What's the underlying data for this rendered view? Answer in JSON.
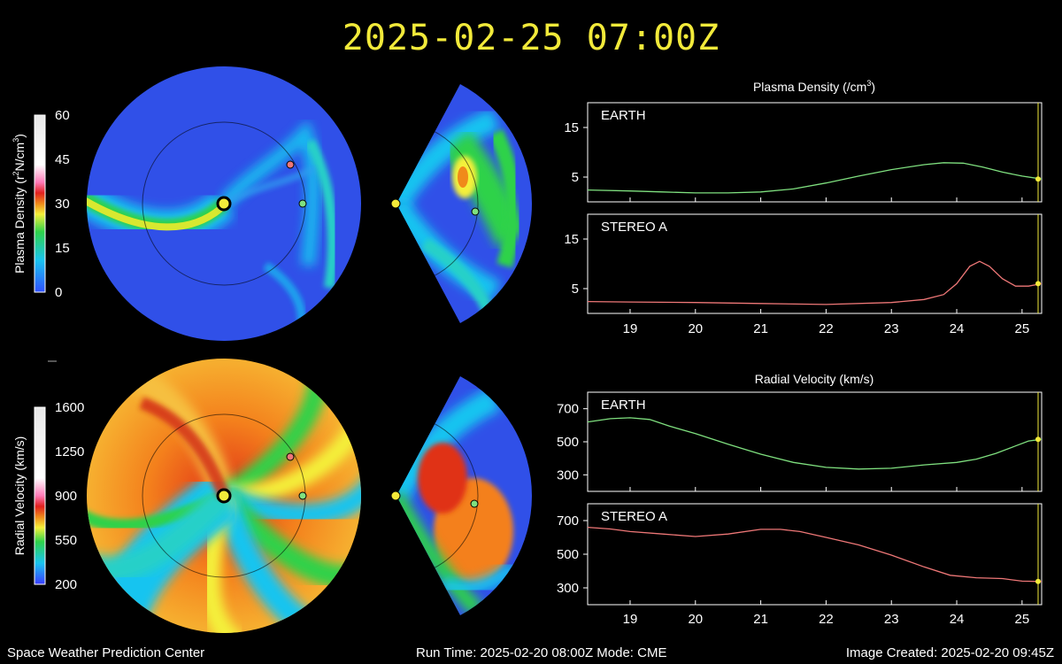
{
  "title": "2025-02-25  07:00Z",
  "footer": {
    "left": "Space Weather Prediction Center",
    "center": "Run Time: 2025-02-20 08:00Z  Mode: CME",
    "right": "Image Created: 2025-02-20 09:45Z"
  },
  "colors": {
    "title": "#f2ea3a",
    "earth": "#7fe07f",
    "stereo_a": "#ee7777",
    "now_marker": "#f2ea3a",
    "axis": "#ffffff"
  },
  "colorbars": {
    "density": {
      "label_prefix": "Plasma Density (r",
      "label_suffix": "N/cm",
      "ticks": [
        "60",
        "45",
        "30",
        "15",
        "0"
      ]
    },
    "velocity": {
      "label": "Radial Velocity (km/s)",
      "ticks": [
        "1600",
        "1250",
        "900",
        "550",
        "200"
      ]
    }
  },
  "chart_data": [
    {
      "type": "line",
      "title": "Plasma Density (/cm3)",
      "title_main": "Plasma Density (/cm",
      "title_sup": "3",
      "title_end": ")",
      "ylim": [
        0,
        20
      ],
      "yticks": [
        "15",
        "5"
      ],
      "xlim": [
        18.35,
        25.3
      ],
      "xticks": [
        "19",
        "20",
        "21",
        "22",
        "23",
        "24",
        "25"
      ],
      "panels": [
        {
          "label": "EARTH",
          "color": "#7fe07f",
          "x": [
            18.35,
            19.0,
            19.5,
            20.0,
            20.5,
            21.0,
            21.5,
            22.0,
            22.5,
            23.0,
            23.5,
            23.8,
            24.1,
            24.4,
            24.7,
            25.0,
            25.3
          ],
          "y": [
            2.4,
            2.2,
            2.0,
            1.8,
            1.8,
            2.0,
            2.6,
            3.8,
            5.2,
            6.5,
            7.5,
            7.9,
            7.8,
            7.0,
            6.0,
            5.2,
            4.6
          ]
        },
        {
          "label": "STEREO A",
          "color": "#ee7777",
          "x": [
            18.35,
            19.0,
            20.0,
            21.0,
            22.0,
            23.0,
            23.5,
            23.8,
            24.0,
            24.2,
            24.35,
            24.5,
            24.7,
            24.9,
            25.1,
            25.3
          ],
          "y": [
            2.4,
            2.3,
            2.2,
            2.0,
            1.8,
            2.2,
            2.8,
            3.8,
            6.0,
            9.5,
            10.5,
            9.5,
            7.0,
            5.5,
            5.5,
            6.0
          ]
        }
      ]
    },
    {
      "type": "line",
      "title": "Radial Velocity (km/s)",
      "ylim": [
        200,
        800
      ],
      "yticks": [
        "700",
        "500",
        "300"
      ],
      "xlim": [
        18.35,
        25.3
      ],
      "xticks": [
        "19",
        "20",
        "21",
        "22",
        "23",
        "24",
        "25"
      ],
      "panels": [
        {
          "label": "EARTH",
          "color": "#7fe07f",
          "x": [
            18.35,
            18.7,
            19.0,
            19.3,
            19.6,
            20.0,
            20.5,
            21.0,
            21.5,
            22.0,
            22.5,
            23.0,
            23.5,
            24.0,
            24.3,
            24.6,
            24.9,
            25.1,
            25.3
          ],
          "y": [
            620,
            640,
            645,
            635,
            595,
            550,
            485,
            425,
            375,
            345,
            335,
            340,
            360,
            375,
            395,
            430,
            475,
            505,
            515
          ]
        },
        {
          "label": "STEREO A",
          "color": "#ee7777",
          "x": [
            18.35,
            18.7,
            19.0,
            19.5,
            20.0,
            20.5,
            21.0,
            21.3,
            21.6,
            22.0,
            22.5,
            23.0,
            23.5,
            23.9,
            24.3,
            24.7,
            25.0,
            25.3
          ],
          "y": [
            660,
            650,
            635,
            620,
            605,
            620,
            648,
            648,
            635,
            600,
            555,
            495,
            425,
            375,
            360,
            355,
            340,
            338
          ]
        }
      ]
    }
  ]
}
